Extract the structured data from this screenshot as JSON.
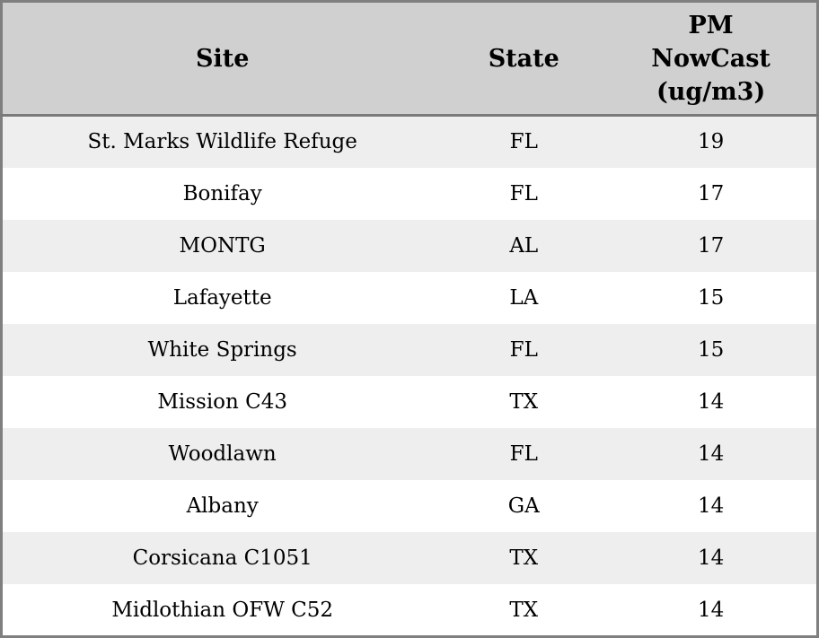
{
  "chart_data": {
    "type": "table",
    "columns": [
      {
        "label": "Site",
        "lines": [
          "Site"
        ]
      },
      {
        "label": "State",
        "lines": [
          "State"
        ]
      },
      {
        "label": "PM NowCast (ug/m3)",
        "lines": [
          "PM",
          "NowCast",
          "(ug/m3)"
        ]
      }
    ],
    "rows": [
      [
        "St. Marks Wildlife Refuge",
        "FL",
        19
      ],
      [
        "Bonifay",
        "FL",
        17
      ],
      [
        "MONTG",
        "AL",
        17
      ],
      [
        "Lafayette",
        "LA",
        15
      ],
      [
        "White Springs",
        "FL",
        15
      ],
      [
        "Mission C43",
        "TX",
        14
      ],
      [
        "Woodlawn",
        "FL",
        14
      ],
      [
        "Albany",
        "GA",
        14
      ],
      [
        "Corsicana C1051",
        "TX",
        14
      ],
      [
        "Midlothian OFW C52",
        "TX",
        14
      ]
    ]
  },
  "colors": {
    "header_bg": "#d0d0d0",
    "stripe_row_bg": "#eeeeee",
    "row_bg": "#ffffff",
    "border": "#7f7f7f",
    "header_divider": "#7a7a7a",
    "text": "#000000"
  }
}
